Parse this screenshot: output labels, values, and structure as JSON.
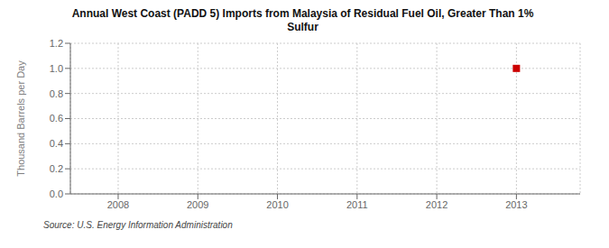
{
  "chart_data": {
    "type": "scatter",
    "title": "Annual West Coast (PADD 5) Imports from Malaysia of Residual Fuel Oil, Greater Than 1%\nSulfur",
    "ylabel": "Thousand Barrels per Day",
    "source": "Source: U.S. Energy Information Administration",
    "x": [
      2013
    ],
    "values": [
      1.0
    ],
    "color": "#cc0000",
    "marker": "square",
    "xlim": [
      2007.4,
      2013.8
    ],
    "xticks": [
      2008,
      2009,
      2010,
      2011,
      2012,
      2013
    ],
    "ylim": [
      0.0,
      1.2
    ],
    "yticks": [
      {
        "value": 0,
        "label": "0.0"
      },
      0.2,
      0.4,
      0.6,
      0.8,
      {
        "value": 1,
        "label": "1.0"
      },
      1.2
    ],
    "grid": true
  }
}
